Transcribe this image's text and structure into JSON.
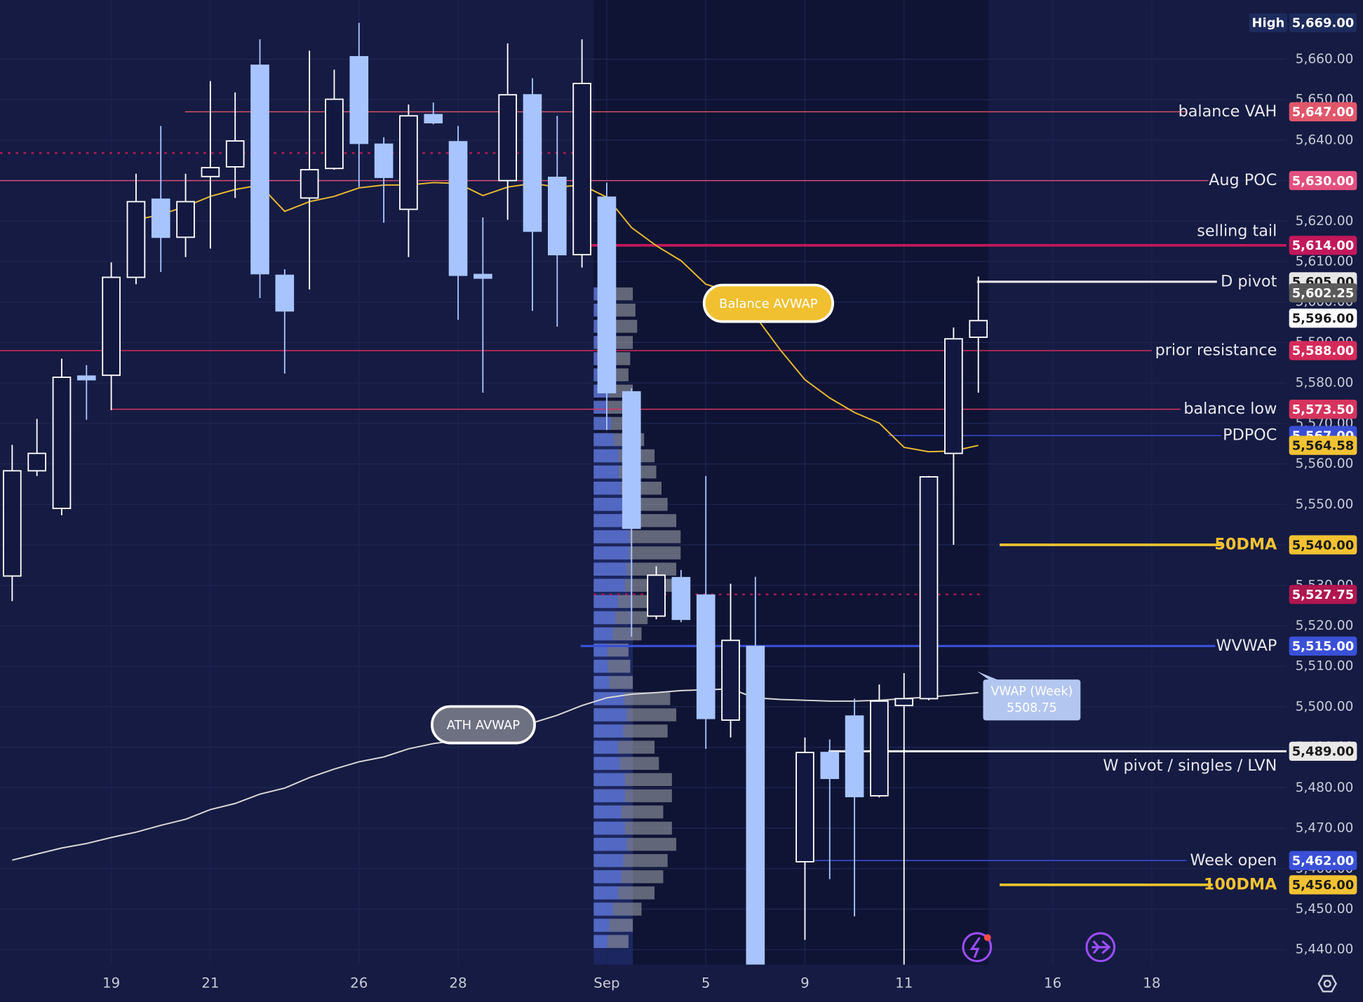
{
  "chart_data": {
    "type": "candlestick",
    "categories": [
      null,
      null,
      null,
      null,
      "19",
      null,
      null,
      null,
      "21",
      null,
      null,
      null,
      null,
      null,
      "26",
      null,
      null,
      null,
      "28",
      null,
      null,
      null,
      null,
      null,
      "Sep",
      null,
      null,
      null,
      "5",
      null,
      null,
      null,
      "9",
      null,
      null,
      null,
      "11",
      null,
      null,
      null,
      null,
      null,
      "16",
      null,
      null,
      null,
      "18"
    ],
    "open": [
      5532.3,
      5558.3,
      5549.0,
      5581.7,
      5581.9,
      5606.1,
      5625.4,
      5616.0,
      5631.0,
      5633.4,
      5658.5,
      5606.6,
      5625.7,
      5633.0,
      5660.6,
      5639.0,
      5622.9,
      5646.3,
      5639.6,
      5606.8,
      5630.0,
      5651.2,
      5630.8,
      5611.7,
      5625.9,
      5577.8,
      5522.4,
      5531.9,
      5527.6,
      5496.7,
      5514.9,
      null,
      5461.7,
      5488.7,
      5497.7,
      5478.0,
      5500.3,
      5502.0,
      5562.6,
      5591.3,
      null,
      null,
      null,
      null,
      null,
      null,
      null
    ],
    "high": [
      5564.7,
      5571.1,
      5586.0,
      5584.4,
      5609.8,
      5631.7,
      5643.5,
      5631.7,
      5654.6,
      5651.8,
      5664.9,
      5608.1,
      5662.1,
      5657.4,
      5669.0,
      5640.7,
      5648.8,
      5649.3,
      5643.5,
      5620.9,
      5663.9,
      5655.3,
      5646.0,
      5664.9,
      5629.5,
      5578.7,
      5534.7,
      5533.8,
      5557.0,
      5530.4,
      5532.1,
      null,
      5492.4,
      5491.9,
      5502.0,
      5505.5,
      5508.3,
      5557.0,
      5593.7,
      5606.3,
      null,
      null,
      null,
      null,
      null,
      null,
      null
    ],
    "low": [
      5526.1,
      5557.0,
      5547.3,
      5570.9,
      5573.3,
      5604.4,
      5607.4,
      5611.1,
      5613.2,
      5625.7,
      5601.0,
      5582.3,
      5603.1,
      5632.7,
      5628.4,
      5619.6,
      5611.1,
      5643.9,
      5595.6,
      5577.6,
      5620.3,
      5597.8,
      5593.9,
      5608.5,
      5568.4,
      5517.3,
      5521.6,
      5520.9,
      5489.6,
      5492.4,
      5428.0,
      null,
      5442.4,
      5457.4,
      5448.2,
      5477.6,
      5436.0,
      5501.6,
      5540.0,
      5577.6,
      null,
      null,
      null,
      null,
      null,
      null,
      null
    ],
    "close": [
      5558.3,
      5562.6,
      5581.4,
      5580.8,
      5606.1,
      5624.8,
      5616.0,
      5624.8,
      5633.2,
      5639.8,
      5607.0,
      5597.8,
      5632.7,
      5650.1,
      5639.2,
      5630.8,
      5646.0,
      5644.3,
      5606.6,
      5605.9,
      5651.2,
      5617.5,
      5611.7,
      5654.0,
      5577.6,
      5544.1,
      5532.5,
      5521.6,
      5497.1,
      5516.4,
      5430.0,
      null,
      5488.7,
      5482.3,
      5477.8,
      5501.4,
      5502.0,
      5556.8,
      5590.9,
      5595.4,
      null,
      null,
      null,
      null,
      null,
      null,
      null
    ],
    "up_color": "#ffffff",
    "down_color": "#a8c4ff",
    "lines": [
      {
        "name": "Balance AVWAP",
        "color": "#e8b830",
        "values": [
          null,
          null,
          null,
          null,
          null,
          5620.3,
          5621.6,
          5623.6,
          5626.1,
          5627.8,
          5628.9,
          5622.4,
          5624.8,
          5626.1,
          5628.2,
          5628.9,
          5628.9,
          5629.5,
          5629.3,
          5626.3,
          5628.4,
          5629.3,
          5628.4,
          5628.9,
          5625.9,
          5618.4,
          5613.9,
          5610.2,
          5604.4,
          5602.5,
          5596.5,
          5588.2,
          5580.8,
          5576.3,
          5572.7,
          5570.1,
          5564.1,
          5563.0,
          5563.2,
          5564.58,
          null,
          null,
          null,
          null,
          null,
          null,
          null
        ]
      },
      {
        "name": "ATH AVWAP",
        "color": "#d8d8d8",
        "values": [
          5462.1,
          5463.6,
          5465.1,
          5466.2,
          5467.7,
          5469.0,
          5470.7,
          5472.2,
          5474.6,
          5476.1,
          5478.4,
          5479.9,
          5482.5,
          5484.6,
          5486.4,
          5487.6,
          5489.6,
          5490.9,
          5491.7,
          5492.8,
          5494.3,
          5496.0,
          5497.9,
          5500.3,
          5502.2,
          5503.1,
          5503.5,
          5504.0,
          5504.2,
          5504.4,
          5502.2,
          5501.8,
          5501.6,
          5501.4,
          5501.4,
          5501.6,
          5502.0,
          5502.4,
          5502.9,
          5503.5,
          null,
          null,
          null,
          null,
          null,
          null,
          null
        ]
      }
    ],
    "levels": [
      {
        "name": "High",
        "value": 5669,
        "value_label": "5,669.00",
        "color": "#1d2a5c"
      },
      {
        "name": "balance VAH",
        "value": 5647,
        "value_label": "5,647.00",
        "color": "#e0566a"
      },
      {
        "name": "Aug POC",
        "value": 5630,
        "value_label": "5,630.00",
        "color": "#e2507e"
      },
      {
        "name": "selling tail",
        "value": 5614,
        "value_label": "5,614.00",
        "color": "#c2185b"
      },
      {
        "name": "D pivot",
        "value": 5605,
        "value_label": "5,605.00",
        "color": "#e6e6e6"
      },
      {
        "value": 5602.25,
        "value_label": "5,602.25",
        "color": "#5a5a5a"
      },
      {
        "value": 5596,
        "value_label": "5,596.00",
        "color": "#ffffff"
      },
      {
        "name": "prior resistance",
        "value": 5588,
        "value_label": "5,588.00",
        "color": "#d42a5a"
      },
      {
        "name": "balance low",
        "value": 5573.5,
        "value_label": "5,573.50",
        "color": "#d6335e"
      },
      {
        "name": "PDPOC",
        "value": 5567,
        "value_label": "5,567.00",
        "color": "#3b4fd6"
      },
      {
        "value": 5564.58,
        "value_label": "5,564.58",
        "color": "#f2c232"
      },
      {
        "name": "50DMA",
        "value": 5540,
        "value_label": "5,540.00",
        "color": "#f2c232"
      },
      {
        "value": 5527.75,
        "value_label": "5,527.75",
        "color": "#b0164f"
      },
      {
        "name": "WVWAP",
        "value": 5515,
        "value_label": "5,515.00",
        "color": "#3a50d8"
      },
      {
        "name": "W pivot / singles / LVN",
        "value": 5489,
        "value_label": "5,489.00",
        "color": "#e8e8e8"
      },
      {
        "name": "Week open",
        "value": 5462,
        "value_label": "5,462.00",
        "color": "#3a50d8"
      },
      {
        "name": "100DMA",
        "value": 5456,
        "value_label": "5,456.00",
        "color": "#f2c232"
      },
      {
        "value": 5636.8,
        "color": "#c2185b"
      }
    ],
    "annotations": [
      {
        "text": "VWAP (Week)",
        "value": 5508.75
      }
    ],
    "volume_profile": {
      "prices": [
        5602,
        5598,
        5594,
        5590,
        5586,
        5582,
        5578,
        5574,
        5570,
        5566,
        5562,
        5558,
        5554,
        5550,
        5546,
        5542,
        5538,
        5534,
        5530,
        5526,
        5522,
        5518,
        5514,
        5510,
        5506,
        5502,
        5498,
        5494,
        5490,
        5486,
        5482,
        5478,
        5474,
        5470,
        5466,
        5462,
        5458,
        5454,
        5450,
        5446,
        5442
      ],
      "volumes": [
        45,
        48,
        50,
        45,
        42,
        40,
        45,
        40,
        50,
        58,
        70,
        72,
        78,
        85,
        95,
        100,
        100,
        95,
        90,
        70,
        62,
        55,
        40,
        42,
        45,
        88,
        95,
        85,
        70,
        75,
        90,
        90,
        80,
        90,
        95,
        85,
        80,
        70,
        55,
        45,
        40
      ],
      "color": "#9a9ca8"
    },
    "ylim": [
      5436.3,
      5674.6
    ],
    "yticks": [
      {
        "value": 5440,
        "label": "5,440.00"
      },
      {
        "value": 5450,
        "label": "5,450.00"
      },
      {
        "value": 5460,
        "label": "5,460.00"
      },
      {
        "value": 5470,
        "label": "5,470.00"
      },
      {
        "value": 5480,
        "label": "5,480.00"
      },
      {
        "value": 5490,
        "label": "5,490.00"
      },
      {
        "value": 5500,
        "label": "5,500.00"
      },
      {
        "value": 5510,
        "label": "5,510.00"
      },
      {
        "value": 5520,
        "label": "5,520.00"
      },
      {
        "value": 5530,
        "label": "5,530.00"
      },
      {
        "value": 5540,
        "label": "5,540.00"
      },
      {
        "value": 5550,
        "label": "5,550.00"
      },
      {
        "value": 5560,
        "label": "5,560.00"
      },
      {
        "value": 5570,
        "label": "5,570.00"
      },
      {
        "value": 5580,
        "label": "5,580.00"
      },
      {
        "value": 5590,
        "label": "5,590.00"
      },
      {
        "value": 5600,
        "label": "5,600.00"
      },
      {
        "value": 5610,
        "label": "5,610.00"
      },
      {
        "value": 5620,
        "label": "5,620.00"
      },
      {
        "value": 5630,
        "label": "5,630.00"
      },
      {
        "value": 5640,
        "label": "5,640.00"
      },
      {
        "value": 5650,
        "label": "5,650.00"
      },
      {
        "value": 5660,
        "label": "5,660.00"
      }
    ],
    "grid": true
  }
}
